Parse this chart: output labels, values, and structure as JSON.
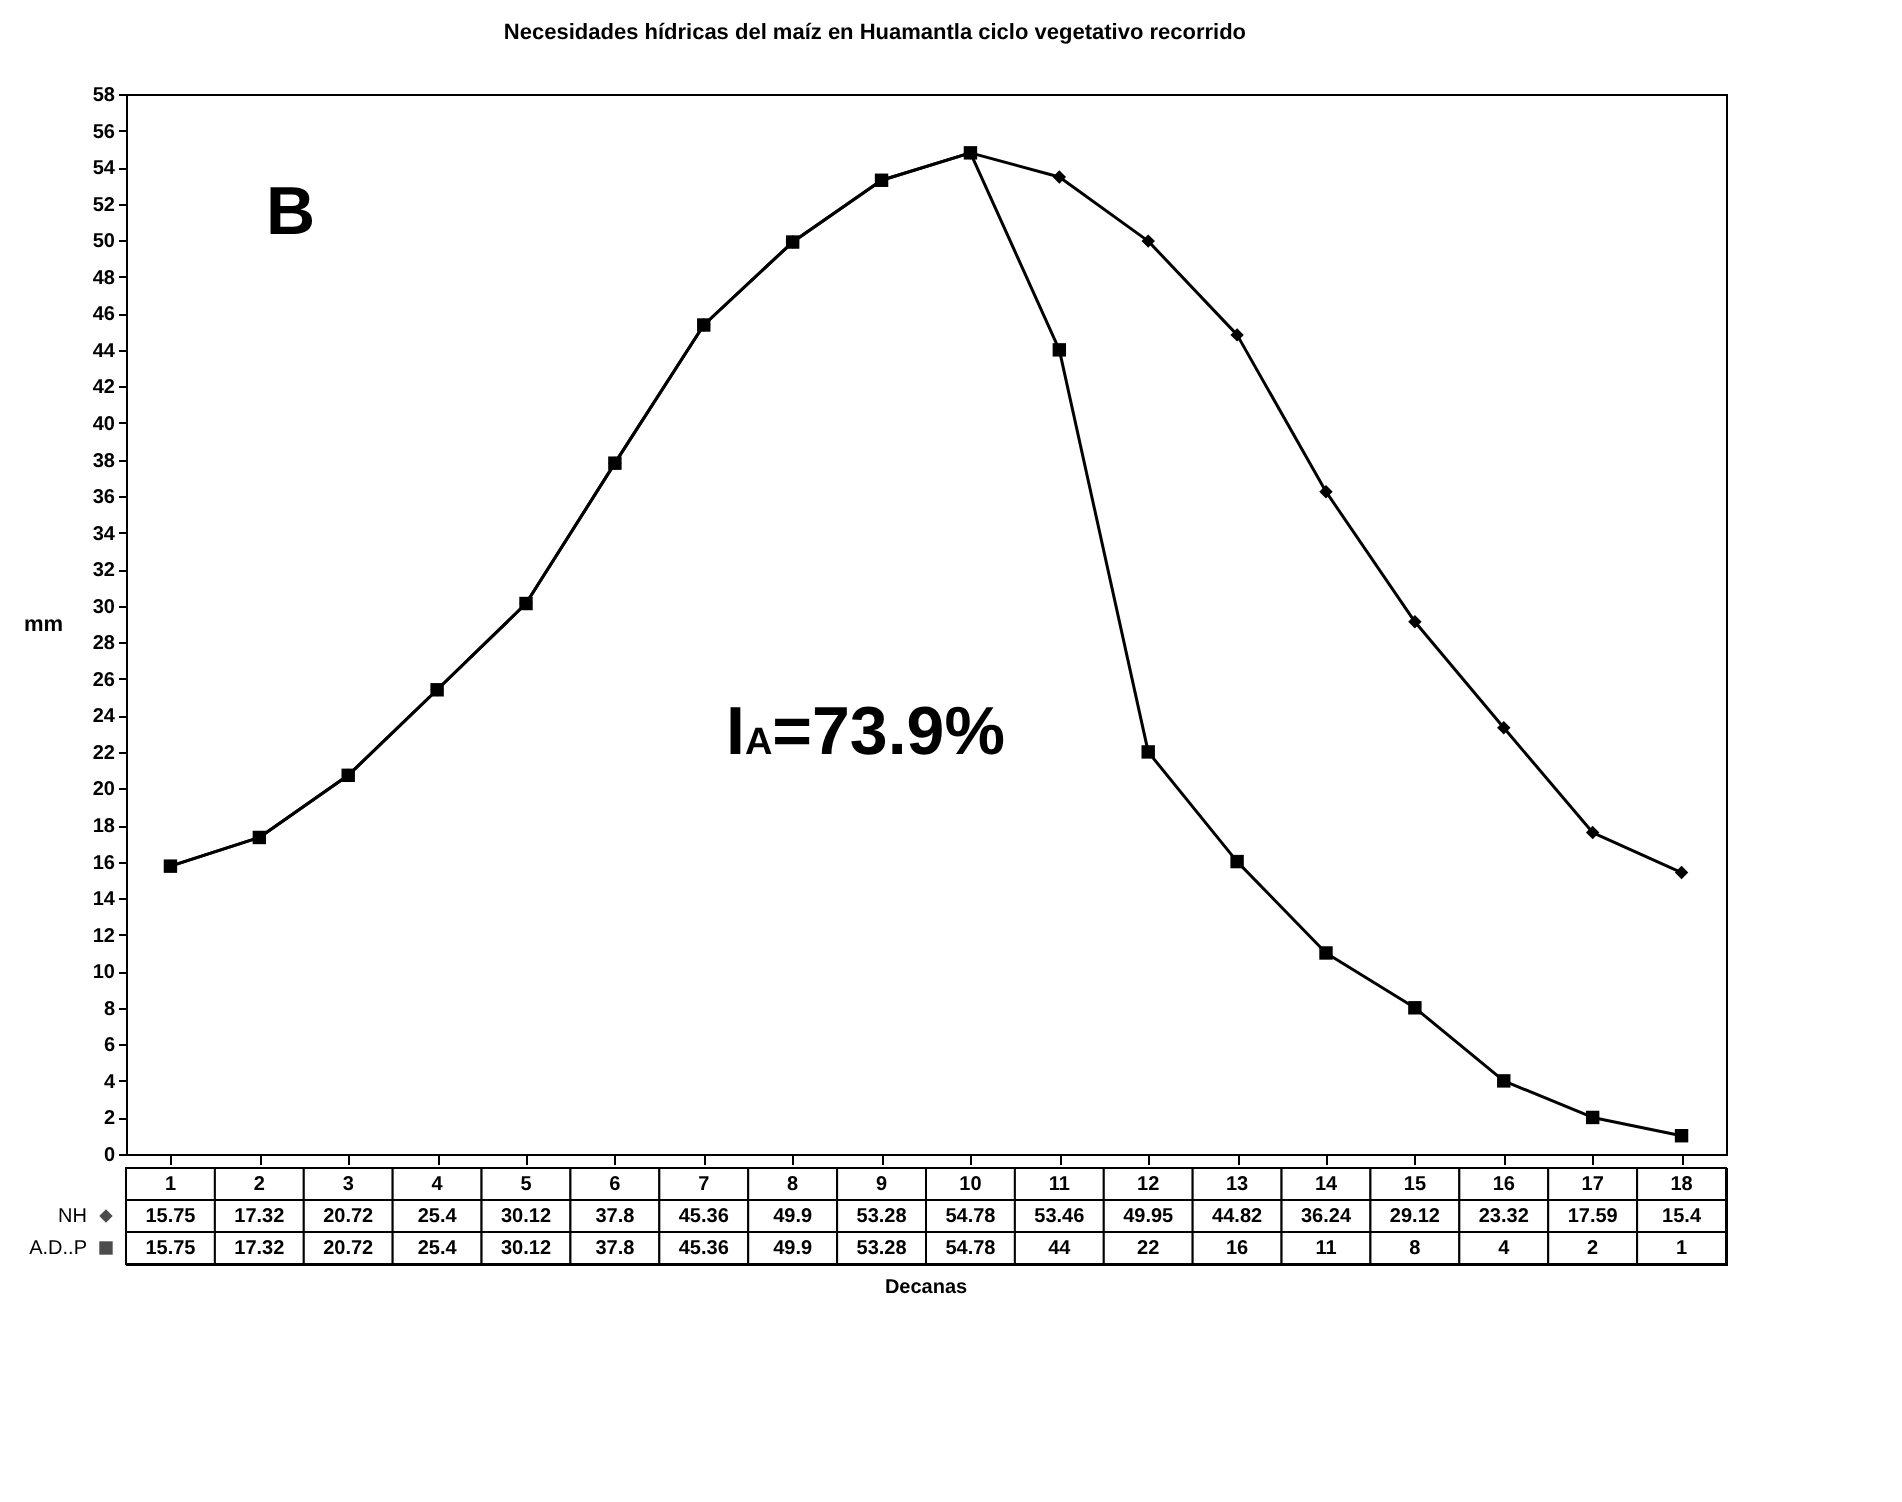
{
  "chart_data": {
    "type": "line",
    "title": "Necesidades hídricas del maíz en Huamantla ciclo vegetativo recorrido",
    "xlabel": "Decanas",
    "ylabel": "mm",
    "categories": [
      "1",
      "2",
      "3",
      "4",
      "5",
      "6",
      "7",
      "8",
      "9",
      "10",
      "11",
      "12",
      "13",
      "14",
      "15",
      "16",
      "17",
      "18"
    ],
    "series": [
      {
        "name": "NH",
        "color": "#000000",
        "marker": "diamond",
        "values": [
          15.75,
          17.32,
          20.72,
          25.4,
          30.12,
          37.8,
          45.36,
          49.9,
          53.28,
          54.78,
          53.46,
          49.95,
          44.82,
          36.24,
          29.12,
          23.32,
          17.59,
          15.4
        ]
      },
      {
        "name": "A.D..P",
        "color": "#000000",
        "marker": "square",
        "values": [
          15.75,
          17.32,
          20.72,
          25.4,
          30.12,
          37.8,
          45.36,
          49.9,
          53.28,
          54.78,
          44,
          22,
          16,
          11,
          8,
          4,
          2,
          1
        ]
      }
    ],
    "ylim": [
      0,
      58
    ],
    "yticks": [
      0,
      2,
      4,
      6,
      8,
      10,
      12,
      14,
      16,
      18,
      20,
      22,
      24,
      26,
      28,
      30,
      32,
      34,
      36,
      38,
      40,
      42,
      44,
      46,
      48,
      50,
      52,
      54,
      56,
      58
    ],
    "grid": false,
    "legend": "bottom",
    "data_labels": true,
    "annotations": [
      "B",
      "I$_{A}$=73.9%"
    ]
  }
}
